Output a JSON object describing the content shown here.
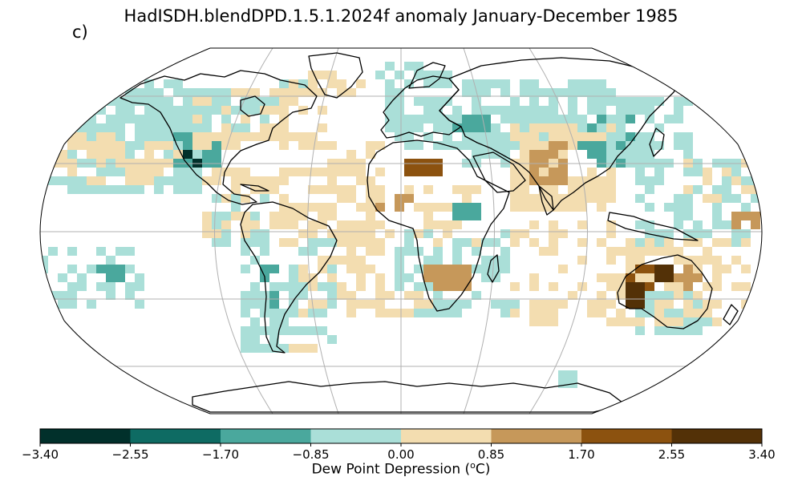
{
  "title": "HadISDH.blendDPD.1.5.1.2024f anomaly January-December 1985",
  "panel_label": "c)",
  "colorbar": {
    "label_prefix": "Dew Point Depression (",
    "label_sup": "o",
    "label_suffix": "C)",
    "ticks": [
      "−3.40",
      "−2.55",
      "−1.70",
      "−0.85",
      "0.00",
      "0.85",
      "1.70",
      "2.55",
      "3.40"
    ],
    "colors": [
      "#01302b",
      "#0e6b63",
      "#4aa89d",
      "#aadfd8",
      "#f3ddb0",
      "#c6985a",
      "#8c520f",
      "#533107"
    ]
  },
  "map": {
    "projection": "Robinson",
    "grid": true,
    "coastlines": true,
    "ocean_color": "#ffffff",
    "land_outline_color": "#000000"
  }
}
